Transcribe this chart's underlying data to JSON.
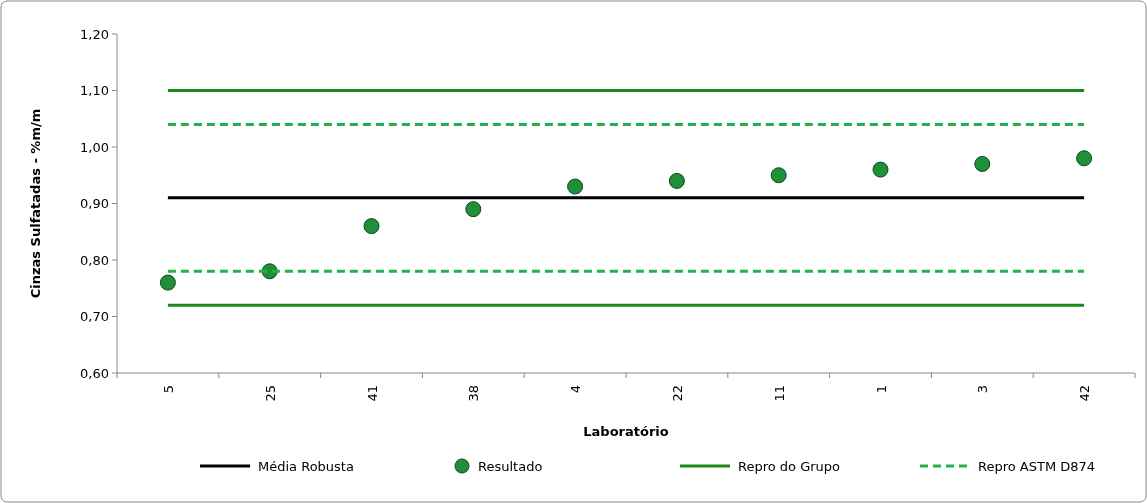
{
  "chart_data": {
    "type": "scatter",
    "xlabel": "Laboratório",
    "ylabel": "Cinzas Sulfatadas - %m/m",
    "categories": [
      "5",
      "25",
      "41",
      "38",
      "4",
      "22",
      "11",
      "1",
      "3",
      "42"
    ],
    "ylim": [
      0.6,
      1.2
    ],
    "yticks": [
      {
        "value": 0.6,
        "label": "0,60"
      },
      {
        "value": 0.7,
        "label": "0,70"
      },
      {
        "value": 0.8,
        "label": "0,80"
      },
      {
        "value": 0.9,
        "label": "0,90"
      },
      {
        "value": 1.0,
        "label": "1,00"
      },
      {
        "value": 1.1,
        "label": "1,10"
      },
      {
        "value": 1.2,
        "label": "1,20"
      }
    ],
    "grid": false,
    "legend": "bottom",
    "series": [
      {
        "name": "Média Robusta",
        "type": "line",
        "color": "#000000",
        "line_style": "solid",
        "marker": "none",
        "values": [
          0.91,
          0.91,
          0.91,
          0.91,
          0.91,
          0.91,
          0.91,
          0.91,
          0.91,
          0.91
        ]
      },
      {
        "name": "Resultado",
        "color": "#1f8f3a",
        "marker": "circle",
        "values": [
          0.76,
          0.78,
          0.86,
          0.89,
          0.93,
          0.94,
          0.95,
          0.96,
          0.97,
          0.98
        ]
      },
      {
        "name": "Repro do Grupo",
        "type": "line",
        "color": "#1a8a1a",
        "line_style": "solid",
        "marker": "none",
        "values": [
          1.1,
          1.1,
          1.1,
          1.1,
          1.1,
          1.1,
          1.1,
          1.1,
          1.1,
          1.1
        ]
      },
      {
        "type": "line",
        "color": "#1a8a1a",
        "line_style": "solid",
        "marker": "none",
        "values": [
          0.72,
          0.72,
          0.72,
          0.72,
          0.72,
          0.72,
          0.72,
          0.72,
          0.72,
          0.72
        ]
      },
      {
        "name": "Repro ASTM D874",
        "type": "line",
        "color": "#22b24c",
        "line_style": "dashed",
        "marker": "none",
        "values": [
          1.04,
          1.04,
          1.04,
          1.04,
          1.04,
          1.04,
          1.04,
          1.04,
          1.04,
          1.04
        ]
      },
      {
        "type": "line",
        "color": "#22b24c",
        "line_style": "dashed",
        "marker": "none",
        "values": [
          0.78,
          0.78,
          0.78,
          0.78,
          0.78,
          0.78,
          0.78,
          0.78,
          0.78,
          0.78
        ]
      }
    ]
  }
}
